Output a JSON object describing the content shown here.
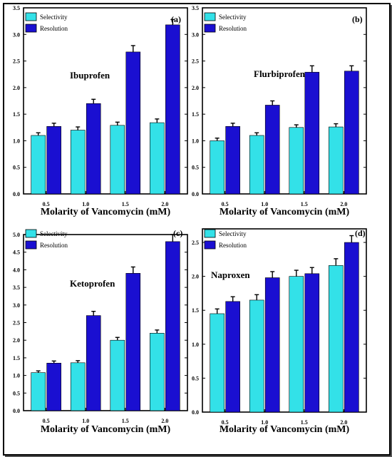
{
  "legend": {
    "selectivity": "Selectivity",
    "resolution": "Resolution"
  },
  "colors": {
    "selectivity": "#33e1e8",
    "resolution": "#1a0fd1"
  },
  "chart_data": [
    {
      "type": "bar",
      "panel": "(a)",
      "annotation": "Ibuprofen",
      "categories": [
        "0.5",
        "1.0",
        "1.5",
        "2.0"
      ],
      "series": [
        {
          "name": "Selectivity",
          "values": [
            1.1,
            1.2,
            1.29,
            1.34
          ],
          "errors": [
            0.05,
            0.06,
            0.06,
            0.07
          ]
        },
        {
          "name": "Resolution",
          "values": [
            1.27,
            1.7,
            2.67,
            3.18
          ],
          "errors": [
            0.06,
            0.08,
            0.12,
            0.1
          ]
        }
      ],
      "xlabel": "Molarity of Vancomycin (mM)",
      "ylabel": "",
      "ylim": [
        0,
        3.5
      ],
      "yticks": [
        "0.0",
        "0.5",
        "1.0",
        "1.5",
        "2.0",
        "2.5",
        "3.0",
        "3.5"
      ]
    },
    {
      "type": "bar",
      "panel": "(b)",
      "annotation": "Flurbiprofen",
      "categories": [
        "0.5",
        "1.0",
        "1.5",
        "2.0"
      ],
      "series": [
        {
          "name": "Selectivity",
          "values": [
            1.0,
            1.1,
            1.25,
            1.26
          ],
          "errors": [
            0.05,
            0.05,
            0.05,
            0.06
          ]
        },
        {
          "name": "Resolution",
          "values": [
            1.27,
            1.67,
            2.29,
            2.31
          ],
          "errors": [
            0.06,
            0.08,
            0.12,
            0.1
          ]
        }
      ],
      "xlabel": "Molarity of Vancomycin (mM)",
      "ylabel": "",
      "ylim": [
        0,
        3.5
      ],
      "yticks": [
        "0.0",
        "0.5",
        "1.0",
        "1.5",
        "2.0",
        "2.5",
        "3.0",
        "3.5"
      ]
    },
    {
      "type": "bar",
      "panel": "(c)",
      "annotation": "Ketoprofen",
      "categories": [
        "0.5",
        "1.0",
        "1.5",
        "2.0"
      ],
      "series": [
        {
          "name": "Selectivity",
          "values": [
            1.08,
            1.36,
            2.0,
            2.2
          ],
          "errors": [
            0.05,
            0.06,
            0.08,
            0.09
          ]
        },
        {
          "name": "Resolution",
          "values": [
            1.35,
            2.7,
            3.9,
            4.8
          ],
          "errors": [
            0.06,
            0.12,
            0.18,
            0.2
          ]
        }
      ],
      "xlabel": "Molarity of Vancomycin (mM)",
      "ylabel": "",
      "ylim": [
        0,
        5.0
      ],
      "yticks": [
        "0.0",
        "0.5",
        "1.0",
        "1.5",
        "2.0",
        "2.5",
        "3.0",
        "3.5",
        "4.0",
        "4.5",
        "5.0"
      ]
    },
    {
      "type": "bar",
      "panel": "(d)",
      "annotation": "Naproxen",
      "categories": [
        "0.5",
        "1.0",
        "1.5",
        "2.0"
      ],
      "series": [
        {
          "name": "Selectivity",
          "values": [
            1.45,
            1.65,
            2.0,
            2.16
          ],
          "errors": [
            0.07,
            0.08,
            0.09,
            0.1
          ]
        },
        {
          "name": "Resolution",
          "values": [
            1.63,
            1.98,
            2.04,
            2.5
          ],
          "errors": [
            0.07,
            0.09,
            0.09,
            0.1
          ]
        }
      ],
      "xlabel": "Molarity of Vancomycin (mM)",
      "ylabel": "",
      "ylim": [
        0,
        2.7
      ],
      "yticks": [
        "0.0",
        "0.5",
        "1.0",
        "1.5",
        "2.0",
        "2.5"
      ]
    }
  ]
}
